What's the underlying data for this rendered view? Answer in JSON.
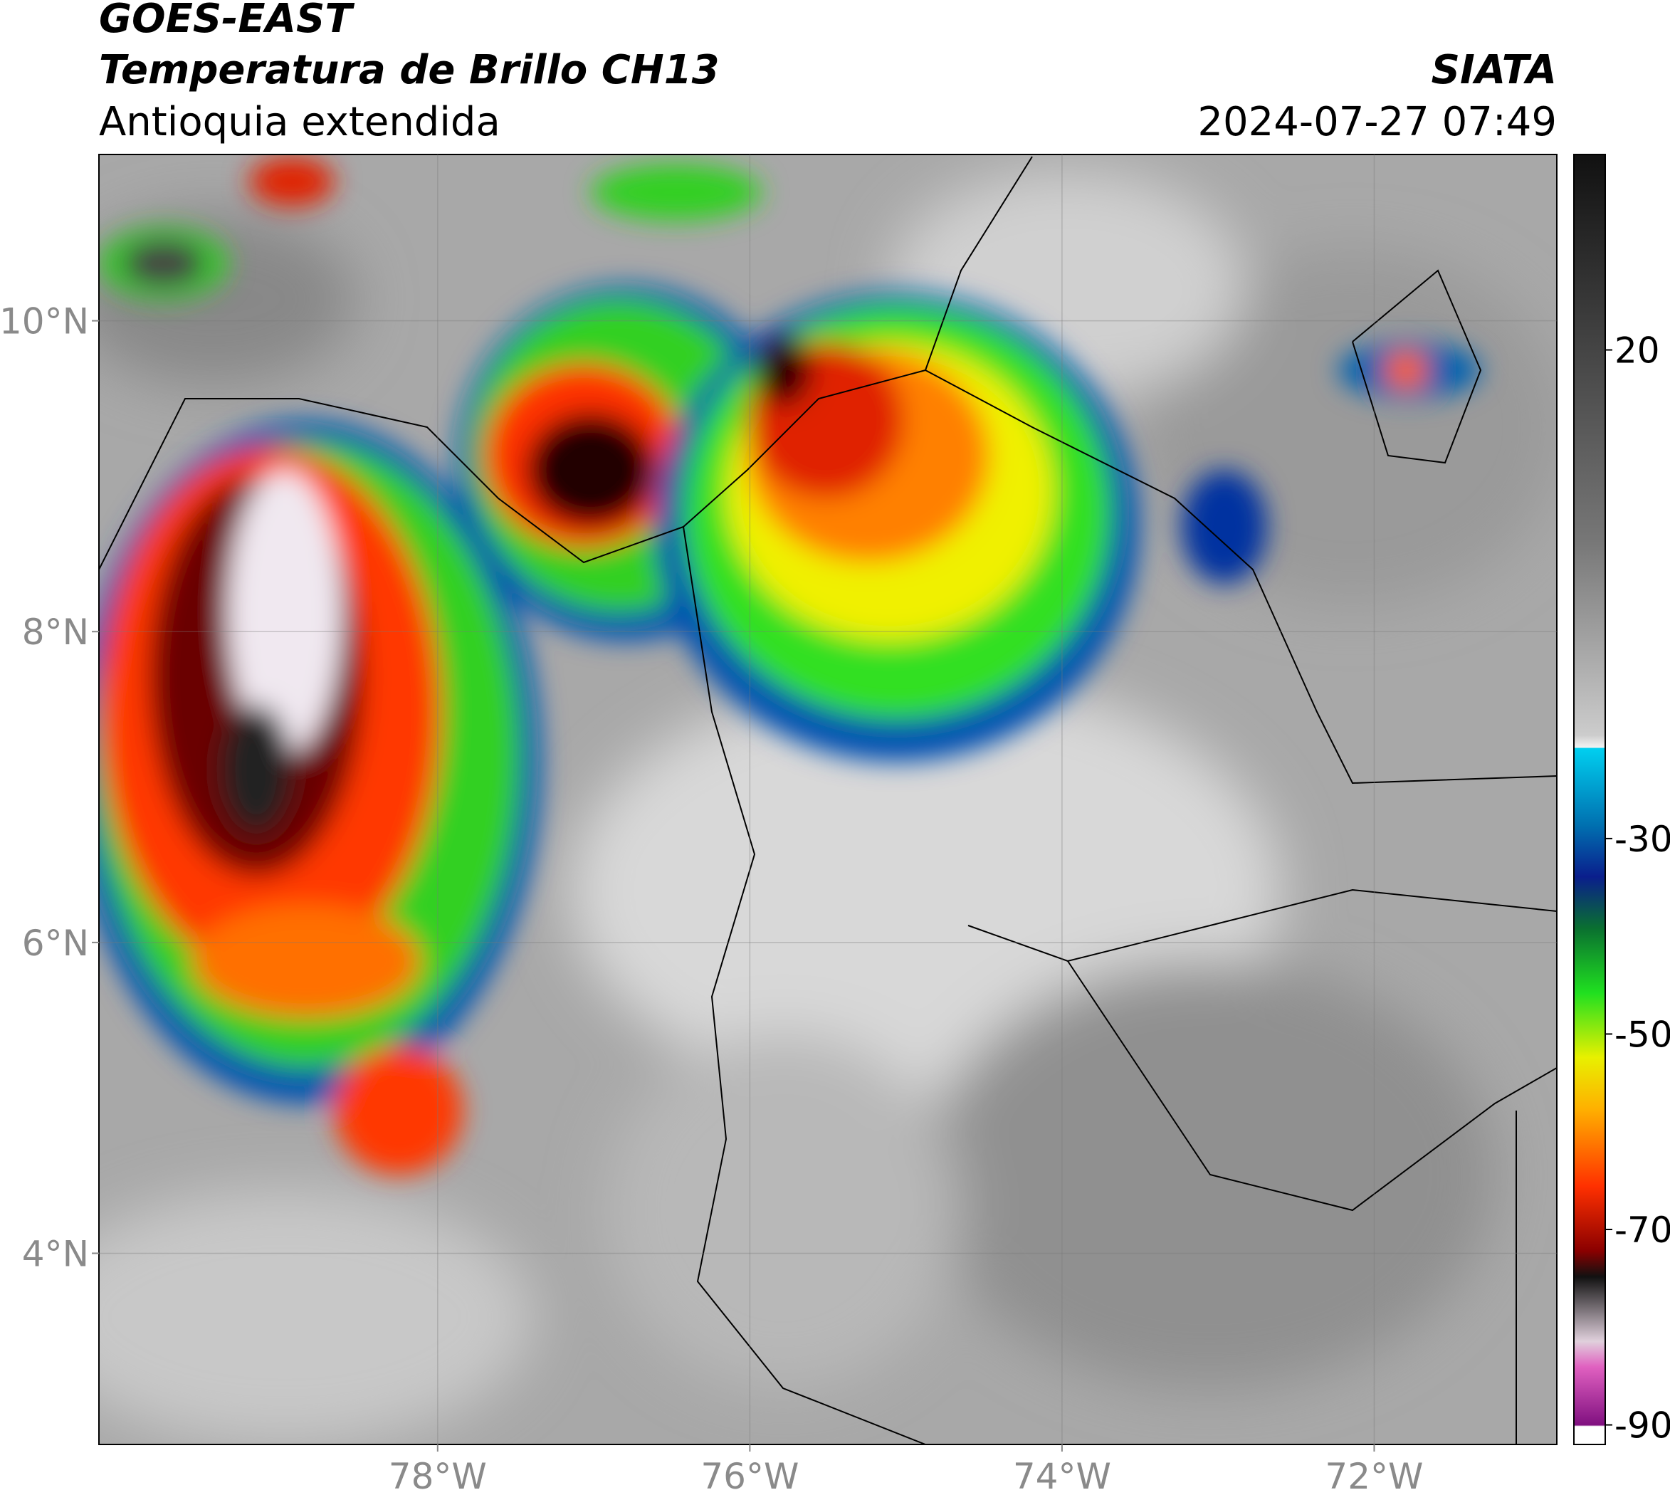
{
  "chart_data": {
    "type": "map",
    "title": "GOES-EAST",
    "subtitle": "Temperatura de Brillo CH13",
    "region": "Antioquia extendida",
    "source": "SIATA",
    "timestamp": "2024-07-27 07:49",
    "xlim": [
      -80.17,
      -70.83
    ],
    "ylim": [
      2.77,
      11.07
    ],
    "xticks": [
      {
        "value": -78,
        "label": "78°W"
      },
      {
        "value": -76,
        "label": "76°W"
      },
      {
        "value": -74,
        "label": "74°W"
      },
      {
        "value": -72,
        "label": "72°W"
      }
    ],
    "yticks": [
      {
        "value": 4,
        "label": "4°N"
      },
      {
        "value": 6,
        "label": "6°N"
      },
      {
        "value": 8,
        "label": "8°N"
      },
      {
        "value": 10,
        "label": "10°N"
      }
    ],
    "grid": true,
    "colorbar": {
      "clim": [
        -92,
        40
      ],
      "ticks": [
        20,
        -30,
        -50,
        -70,
        -90
      ]
    }
  }
}
